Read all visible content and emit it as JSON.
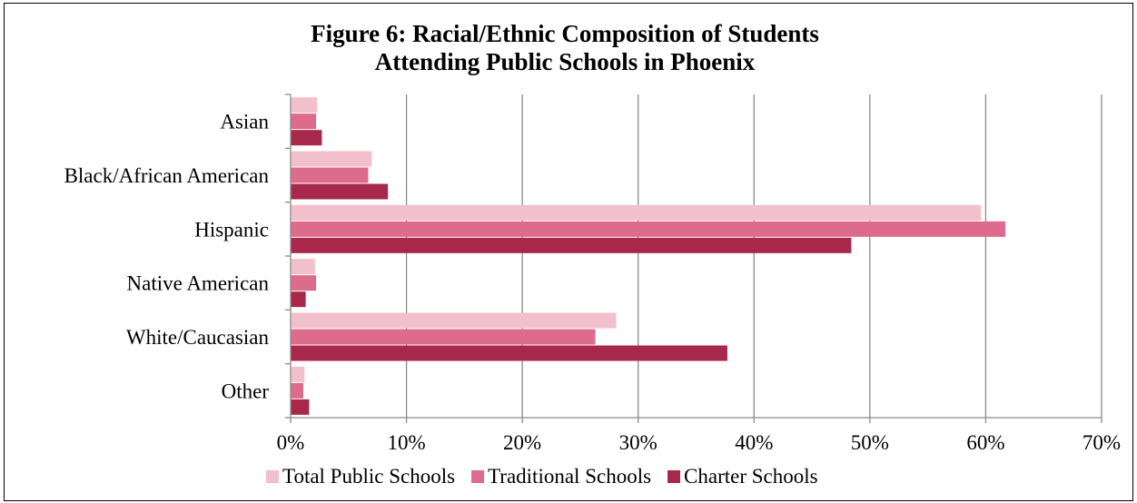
{
  "chart_data": {
    "type": "bar",
    "orientation": "horizontal",
    "title_lines": [
      "Figure 6: Racial/Ethnic Composition of Students",
      "Attending Public Schools in Phoenix"
    ],
    "categories": [
      "Asian",
      "Black/African American",
      "Hispanic",
      "Native American",
      "White/Caucasian",
      "Other"
    ],
    "series": [
      {
        "name": "Total Public Schools",
        "color": "#f2bfcc",
        "values": [
          2.3,
          7.0,
          59.6,
          2.1,
          28.1,
          1.2
        ]
      },
      {
        "name": "Traditional Schools",
        "color": "#dc6b8c",
        "values": [
          2.2,
          6.7,
          61.7,
          2.2,
          26.3,
          1.1
        ]
      },
      {
        "name": "Charter Schools",
        "color": "#a8284c",
        "values": [
          2.7,
          8.4,
          48.4,
          1.3,
          37.7,
          1.6
        ]
      }
    ],
    "xlim": [
      0,
      70
    ],
    "xticks": [
      "0%",
      "10%",
      "20%",
      "30%",
      "40%",
      "50%",
      "60%",
      "70%"
    ],
    "grid": true,
    "legend_position": "bottom"
  }
}
